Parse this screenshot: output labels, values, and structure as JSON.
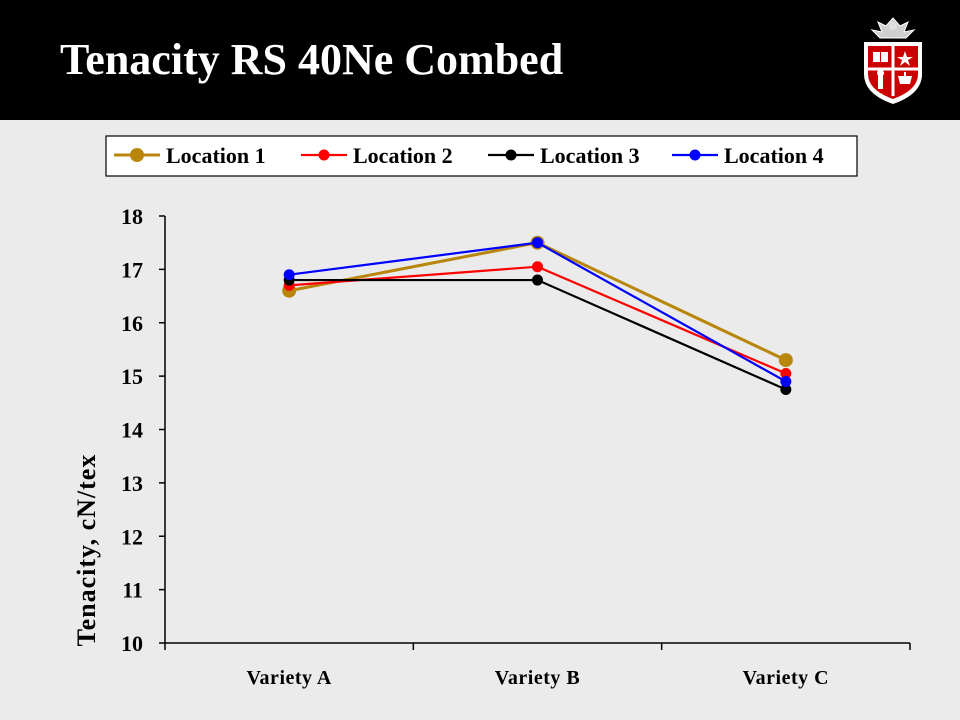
{
  "slide": {
    "title": "Tenacity RS 40Ne Combed",
    "header_color": "#000000",
    "background_color": "#ebebeb",
    "logo_icon": "university-shield-logo"
  },
  "chart_data": {
    "type": "line",
    "title": "",
    "xlabel": "",
    "ylabel": "Tenacity, cN/tex",
    "categories": [
      "Variety A",
      "Variety B",
      "Variety C"
    ],
    "ylim": [
      10,
      18
    ],
    "yticks": [
      10,
      11,
      12,
      13,
      14,
      15,
      16,
      17,
      18
    ],
    "grid": false,
    "legend_position": "top",
    "series": [
      {
        "name": "Location 1",
        "values": [
          16.6,
          17.5,
          15.3
        ],
        "color": "#b8860b"
      },
      {
        "name": "Location 2",
        "values": [
          16.7,
          17.05,
          15.05
        ],
        "color": "#ff0000"
      },
      {
        "name": "Location 3",
        "values": [
          16.8,
          16.8,
          14.75
        ],
        "color": "#000000"
      },
      {
        "name": "Location 4",
        "values": [
          16.9,
          17.5,
          14.9
        ],
        "color": "#0000ff"
      }
    ]
  }
}
